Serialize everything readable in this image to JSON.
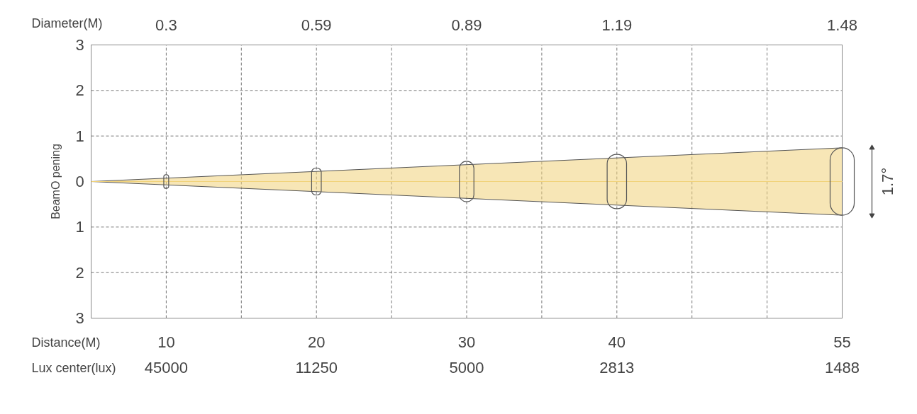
{
  "chart_data": {
    "type": "bar",
    "ylabel": "BeamO pening",
    "xlabel": "Distance(M)",
    "x": [
      10,
      20,
      30,
      40,
      55
    ],
    "xlim": [
      5,
      55
    ],
    "xticks": [
      {
        "value": 10,
        "label": "10"
      },
      {
        "value": 15,
        "label": null
      },
      {
        "value": 20,
        "label": "20"
      },
      {
        "value": 25,
        "label": null
      },
      {
        "value": 30,
        "label": "30"
      },
      {
        "value": 35,
        "label": null
      },
      {
        "value": 40,
        "label": "40"
      },
      {
        "value": 45,
        "label": null
      },
      {
        "value": 50,
        "label": null
      },
      {
        "value": 55,
        "label": "55"
      }
    ],
    "ylim": [
      -3,
      3
    ],
    "yticks": [
      {
        "value": -3,
        "label": "3"
      },
      {
        "value": -2,
        "label": "2"
      },
      {
        "value": -1,
        "label": "1"
      },
      0,
      1,
      2,
      3
    ],
    "grid": true,
    "series": [
      {
        "name": "Diameter(M)",
        "color": "#555555",
        "values": [
          0.3,
          0.59,
          0.89,
          1.19,
          1.48
        ],
        "base": [
          -0.15,
          -0.295,
          -0.445,
          -0.595,
          -0.74
        ]
      },
      {
        "type": "line",
        "color": "#f1d27a",
        "x": [
          5,
          55
        ],
        "values": [
          0,
          0
        ],
        "lower": [
          0,
          -0.74
        ],
        "upper": [
          0,
          0.74
        ]
      }
    ],
    "annotations": [
      "Lux center(lux)",
      "45000",
      "11250",
      "5000",
      "2813",
      "1488",
      "0.3",
      "0.59",
      "0.89",
      "1.19",
      "1.48",
      "1.7°"
    ]
  }
}
